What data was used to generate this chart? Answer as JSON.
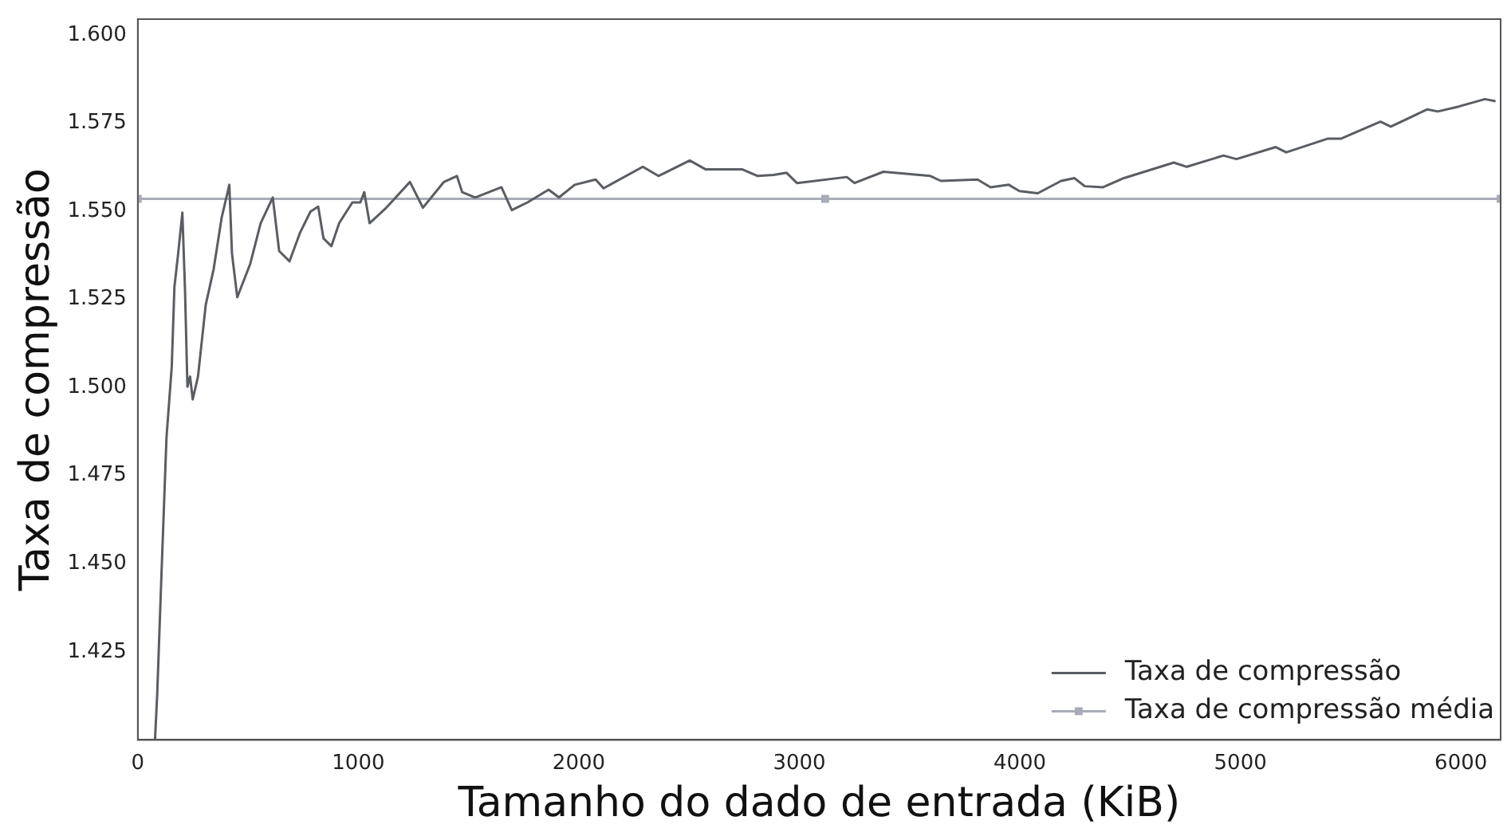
{
  "chart_data": {
    "type": "line",
    "xlabel": "Tamanho do dado de entrada (KiB)",
    "ylabel": "Taxa de compressão",
    "xlim": [
      0,
      6180
    ],
    "xticks": [
      0,
      1000,
      2000,
      3000,
      4000,
      5000,
      6000
    ],
    "ylim": [
      1.4,
      1.6045
    ],
    "yticks": [
      1.425,
      {
        "value": 1.45,
        "label": "1.450"
      },
      1.475,
      {
        "value": 1.5,
        "label": "1.500"
      },
      1.525,
      {
        "value": 1.55,
        "label": "1.550"
      },
      1.575,
      {
        "value": 1.6,
        "label": "1.600"
      }
    ],
    "grid": false,
    "legend": "bottom right",
    "series": [
      {
        "name": "Taxa de compressão",
        "color": "#5a5d63",
        "marker": "none",
        "x": [
          78,
          88,
          107,
          130,
          154,
          166,
          183,
          202,
          214,
          225,
          237,
          249,
          273,
          308,
          344,
          380,
          415,
          427,
          451,
          510,
          557,
          612,
          641,
          688,
          735,
          783,
          818,
          842,
          878,
          913,
          973,
          1009,
          1027,
          1051,
          1127,
          1234,
          1293,
          1388,
          1447,
          1471,
          1530,
          1649,
          1696,
          1767,
          1863,
          1910,
          1981,
          2076,
          2112,
          2290,
          2361,
          2503,
          2574,
          2740,
          2811,
          2883,
          2942,
          2989,
          3215,
          3250,
          3381,
          3594,
          3642,
          3808,
          3867,
          3950,
          3998,
          4081,
          4187,
          4247,
          4294,
          4377,
          4472,
          4698,
          4757,
          4923,
          4982,
          5160,
          5208,
          5397,
          5457,
          5635,
          5682,
          5848,
          5895,
          5990,
          6109,
          6157
        ],
        "values": [
          1.4,
          1.413,
          1.4465,
          1.4857,
          1.506,
          1.5285,
          1.538,
          1.5496,
          1.5278,
          1.5002,
          1.5031,
          1.4966,
          1.5031,
          1.5234,
          1.5336,
          1.5481,
          1.5575,
          1.538,
          1.5256,
          1.5351,
          1.5466,
          1.5539,
          1.5387,
          1.5358,
          1.5438,
          1.5499,
          1.5513,
          1.5423,
          1.5401,
          1.5466,
          1.5525,
          1.5525,
          1.5554,
          1.5466,
          1.551,
          1.5583,
          1.551,
          1.5583,
          1.56,
          1.5554,
          1.5539,
          1.5568,
          1.5503,
          1.5525,
          1.5561,
          1.5539,
          1.5575,
          1.559,
          1.5565,
          1.5626,
          1.56,
          1.5644,
          1.5619,
          1.5619,
          1.56,
          1.5603,
          1.5609,
          1.558,
          1.5597,
          1.558,
          1.5612,
          1.56,
          1.5586,
          1.559,
          1.5568,
          1.5575,
          1.5557,
          1.5551,
          1.5586,
          1.5594,
          1.5571,
          1.5568,
          1.5594,
          1.5638,
          1.5626,
          1.5658,
          1.5648,
          1.5682,
          1.5667,
          1.5706,
          1.5706,
          1.5754,
          1.574,
          1.5789,
          1.5783,
          1.5797,
          1.5818,
          1.5812
        ]
      },
      {
        "name": "Taxa de compressão média",
        "color": "#a9abb8",
        "marker": "square",
        "x": [
          0,
          3117,
          6180
        ],
        "values": [
          1.5535,
          1.5535,
          1.5535
        ]
      }
    ]
  }
}
